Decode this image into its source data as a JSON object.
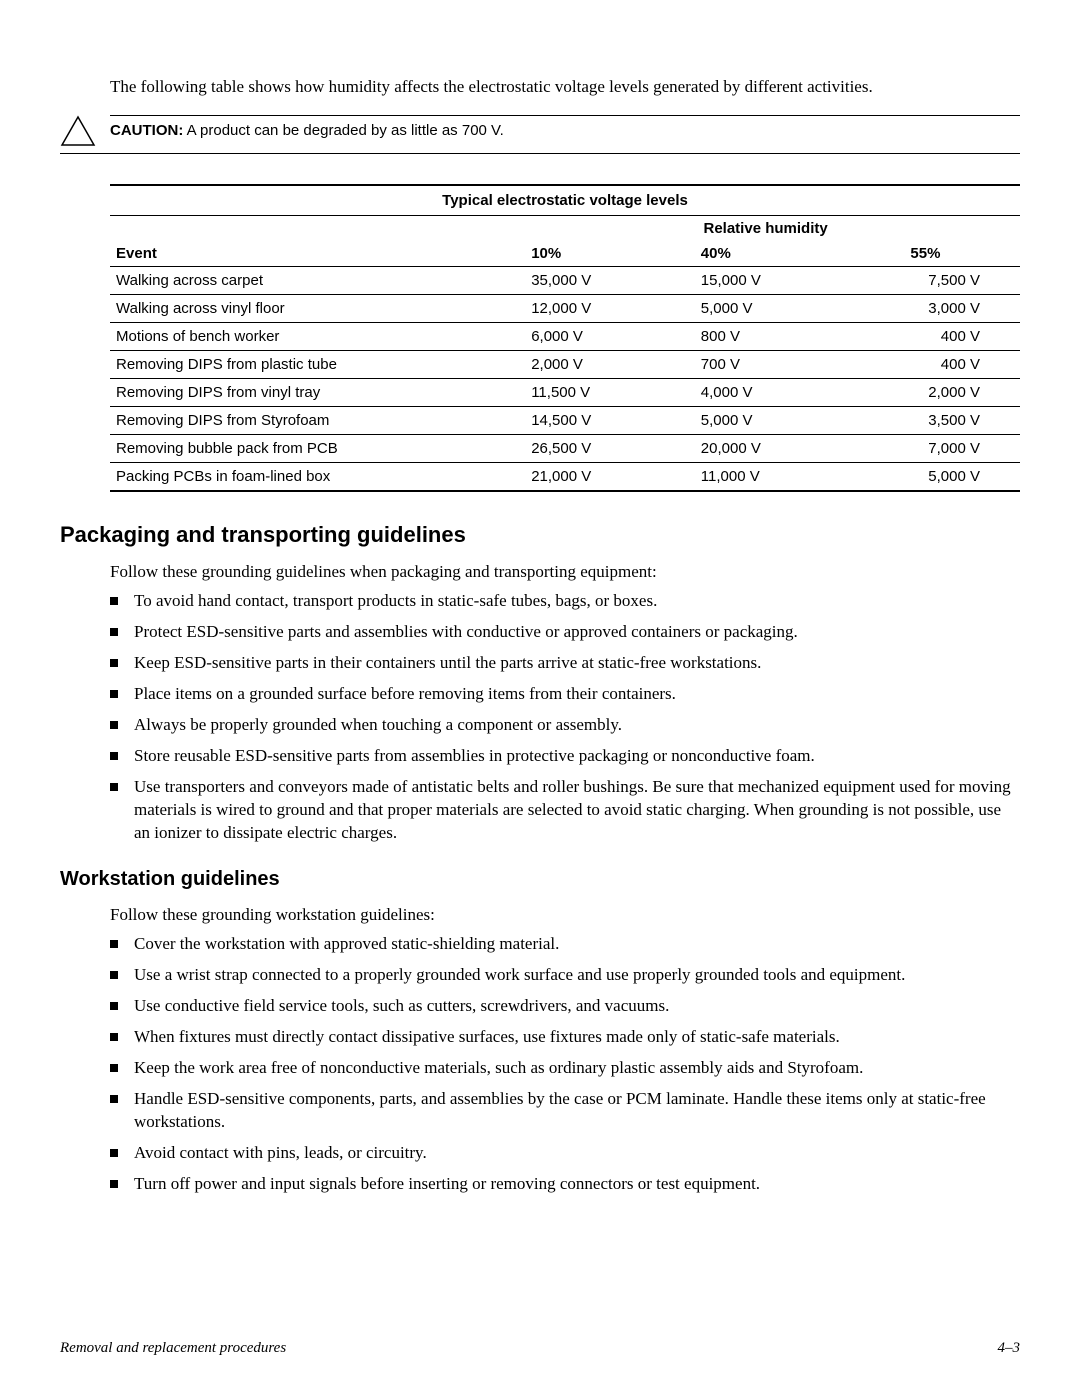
{
  "intro": "The following table shows how humidity affects the electrostatic voltage levels generated by different activities.",
  "caution": {
    "label": "CAUTION:",
    "text": " A product can be degraded by as little as 700 V."
  },
  "table": {
    "title": "Typical electrostatic voltage levels",
    "subhead": "Relative humidity",
    "headers": {
      "event": "Event",
      "c1": "10%",
      "c2": "40%",
      "c3": "55%"
    },
    "col_widths": [
      "44%",
      "18.6%",
      "18.6%",
      "18.6%"
    ],
    "rows": [
      {
        "event": "Walking across carpet",
        "c1": "35,000 V",
        "c2": "15,000 V",
        "c3": "7,500 V"
      },
      {
        "event": "Walking across vinyl floor",
        "c1": "12,000 V",
        "c2": "5,000 V",
        "c3": "3,000 V"
      },
      {
        "event": "Motions of bench worker",
        "c1": "6,000 V",
        "c2": "800 V",
        "c3": "400 V"
      },
      {
        "event": "Removing DIPS from plastic tube",
        "c1": "2,000 V",
        "c2": "700 V",
        "c3": "400 V"
      },
      {
        "event": "Removing DIPS from vinyl tray",
        "c1": "11,500 V",
        "c2": "4,000 V",
        "c3": "2,000 V"
      },
      {
        "event": "Removing DIPS from Styrofoam",
        "c1": "14,500 V",
        "c2": "5,000 V",
        "c3": "3,500 V"
      },
      {
        "event": "Removing bubble pack from PCB",
        "c1": "26,500 V",
        "c2": "20,000 V",
        "c3": "7,000 V"
      },
      {
        "event": "Packing PCBs in foam-lined box",
        "c1": "21,000 V",
        "c2": "11,000 V",
        "c3": "5,000 V"
      }
    ]
  },
  "section1": {
    "title": "Packaging and transporting guidelines",
    "lead": "Follow these grounding guidelines when packaging and transporting equipment:",
    "items": [
      "To avoid hand contact, transport products in static-safe tubes, bags, or boxes.",
      "Protect ESD-sensitive parts and assemblies with conductive or approved containers or packaging.",
      "Keep ESD-sensitive parts in their containers until the parts arrive at static-free workstations.",
      "Place items on a grounded surface before removing items from their containers.",
      "Always be properly grounded when touching a component or assembly.",
      "Store reusable ESD-sensitive parts from assemblies in protective packaging or nonconductive foam.",
      "Use transporters and conveyors made of antistatic belts and roller bushings. Be sure that mechanized equipment used for moving materials is wired to ground and that proper materials are selected to avoid static charging. When grounding is not possible, use an ionizer to dissipate electric charges."
    ]
  },
  "section2": {
    "title": "Workstation guidelines",
    "lead": "Follow these grounding workstation guidelines:",
    "items": [
      "Cover the workstation with approved static-shielding material.",
      "Use a wrist strap connected to a properly grounded work surface and use properly grounded tools and equipment.",
      "Use conductive field service tools, such as cutters, screwdrivers, and vacuums.",
      "When fixtures must directly contact dissipative surfaces, use fixtures made only of static-safe materials.",
      "Keep the work area free of nonconductive materials, such as ordinary plastic assembly aids and Styrofoam.",
      "Handle ESD-sensitive components, parts, and assemblies by the case or PCM laminate. Handle these items only at static-free workstations.",
      "Avoid contact with pins, leads, or circuitry.",
      "Turn off power and input signals before inserting or removing connectors or test equipment."
    ]
  },
  "footer": {
    "left": "Removal and replacement procedures",
    "right": "4–3"
  }
}
